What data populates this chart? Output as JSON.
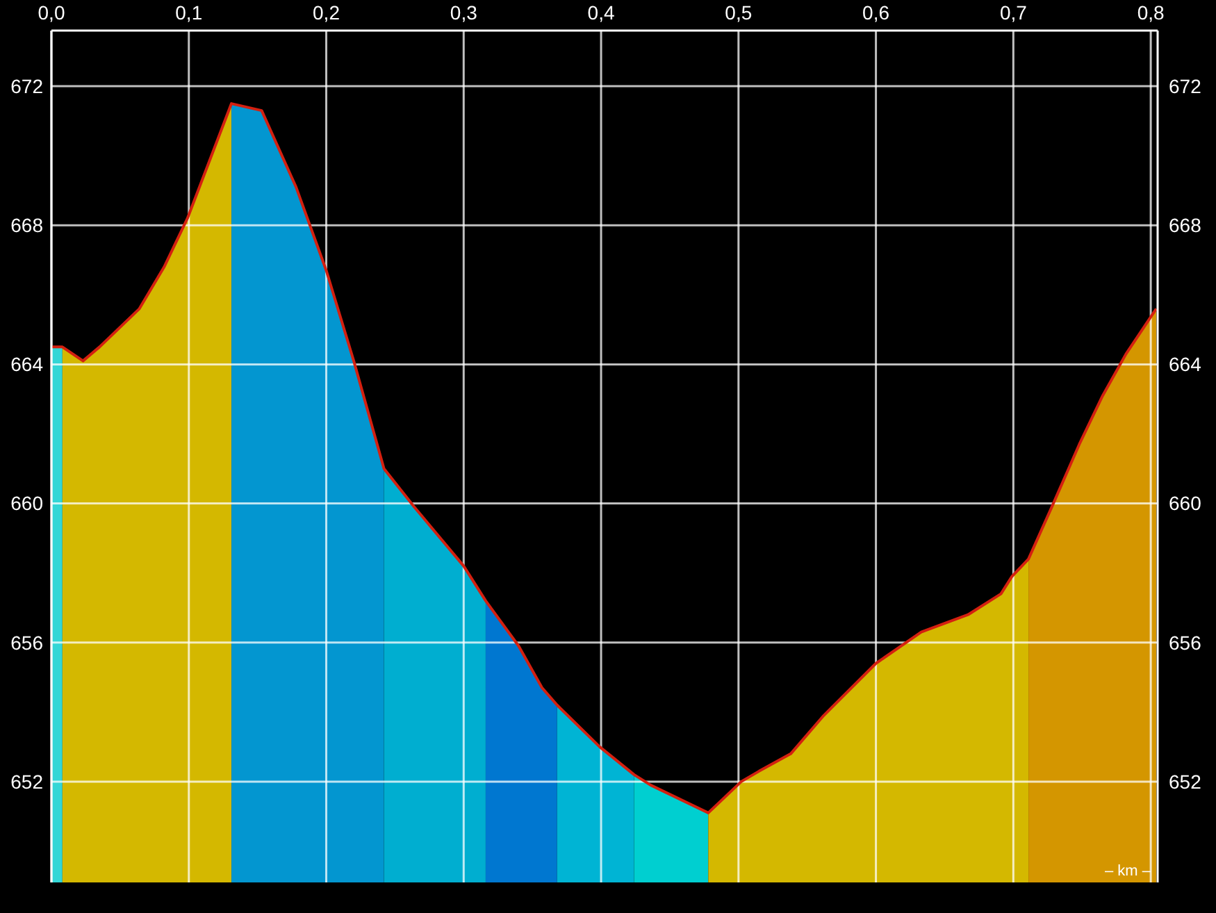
{
  "chart_data": {
    "type": "area",
    "xlabel": "– km –",
    "grid": true,
    "xlim": [
      0,
      0.805
    ],
    "xticks": [
      {
        "value": 0,
        "label": "0,0"
      },
      {
        "value": 0.1,
        "label": "0,1"
      },
      {
        "value": 0.2,
        "label": "0,2"
      },
      {
        "value": 0.3,
        "label": "0,3"
      },
      {
        "value": 0.4,
        "label": "0,4"
      },
      {
        "value": 0.5,
        "label": "0,5"
      },
      {
        "value": 0.6,
        "label": "0,6"
      },
      {
        "value": 0.7,
        "label": "0,7"
      },
      {
        "value": 0.8,
        "label": "0,8"
      }
    ],
    "ylim": [
      649.1,
      673.6
    ],
    "yticks": [
      652,
      656,
      660,
      664,
      668,
      672
    ],
    "y2lim": [
      649.1,
      673.6
    ],
    "y2ticks": [
      652,
      656,
      660,
      664,
      668,
      672
    ],
    "series": [
      {
        "color": "#33d6d6",
        "x": [
          0,
          0.008
        ],
        "values": [
          664.5,
          664.5
        ]
      },
      {
        "color": "#d4b800",
        "x": [
          0.008,
          0.023,
          0.035,
          0.064,
          0.082,
          0.099,
          0.131
        ],
        "values": [
          664.5,
          664.1,
          664.5,
          665.6,
          666.8,
          668.2,
          671.5
        ]
      },
      {
        "color": "#0396d0",
        "x": [
          0.131,
          0.153,
          0.178,
          0.2,
          0.22,
          0.242
        ],
        "values": [
          671.5,
          671.3,
          669.1,
          666.7,
          664.1,
          661.0
        ]
      },
      {
        "color": "#00aed0",
        "x": [
          0.242,
          0.264,
          0.3,
          0.316
        ],
        "values": [
          661.0,
          659.9,
          658.2,
          657.2
        ]
      },
      {
        "color": "#0077d0",
        "x": [
          0.316,
          0.34,
          0.357,
          0.368
        ],
        "values": [
          657.2,
          655.9,
          654.7,
          654.2
        ]
      },
      {
        "color": "#00b4d4",
        "x": [
          0.368,
          0.399,
          0.424
        ],
        "values": [
          654.2,
          653.0,
          652.2
        ]
      },
      {
        "color": "#00cfd0",
        "x": [
          0.424,
          0.436,
          0.478
        ],
        "values": [
          652.2,
          651.9,
          651.1
        ]
      },
      {
        "color": "#d4b800",
        "x": [
          0.478,
          0.502,
          0.515,
          0.538,
          0.562,
          0.6,
          0.633,
          0.667,
          0.691,
          0.699,
          0.711
        ],
        "values": [
          651.1,
          652.0,
          652.3,
          652.8,
          653.9,
          655.4,
          656.3,
          656.8,
          657.4,
          657.9,
          658.4
        ]
      },
      {
        "color": "#d49600",
        "x": [
          0.711,
          0.728,
          0.748,
          0.765,
          0.782,
          0.804
        ],
        "values": [
          658.4,
          659.9,
          661.7,
          663.1,
          664.3,
          665.6
        ]
      },
      {
        "type": "line",
        "color": "#d42010",
        "x": [
          0,
          0.008,
          0.023,
          0.035,
          0.064,
          0.082,
          0.099,
          0.131,
          0.153,
          0.178,
          0.2,
          0.22,
          0.242,
          0.264,
          0.3,
          0.316,
          0.34,
          0.357,
          0.368,
          0.399,
          0.424,
          0.436,
          0.478,
          0.502,
          0.515,
          0.538,
          0.562,
          0.6,
          0.633,
          0.667,
          0.691,
          0.699,
          0.711,
          0.728,
          0.748,
          0.765,
          0.782,
          0.804
        ],
        "values": [
          664.5,
          664.5,
          664.1,
          664.5,
          665.6,
          666.8,
          668.2,
          671.5,
          671.3,
          669.1,
          666.7,
          664.1,
          661.0,
          659.9,
          658.2,
          657.2,
          655.9,
          654.7,
          654.2,
          653.0,
          652.2,
          651.9,
          651.1,
          652.0,
          652.3,
          652.8,
          653.9,
          655.4,
          656.3,
          656.8,
          657.4,
          657.9,
          658.4,
          659.9,
          661.7,
          663.1,
          664.3,
          665.6
        ]
      }
    ]
  }
}
